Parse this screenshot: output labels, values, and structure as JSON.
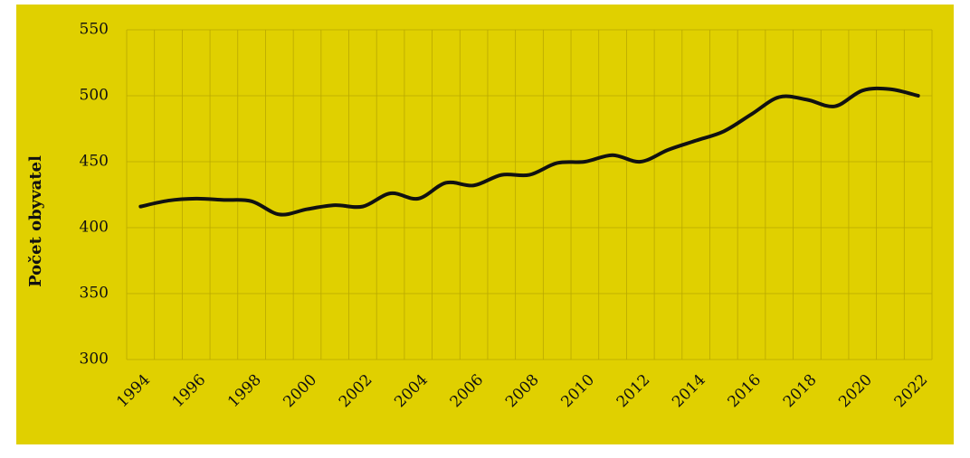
{
  "chart_data": {
    "type": "line",
    "y_label": "Počet obyvatel",
    "categories": [
      "1994",
      null,
      "1996",
      null,
      "1998",
      null,
      "2000",
      null,
      "2002",
      null,
      "2004",
      null,
      "2006",
      null,
      "2008",
      null,
      "2010",
      null,
      "2012",
      null,
      "2014",
      null,
      "2016",
      null,
      "2018",
      null,
      "2020",
      null,
      "2022"
    ],
    "series": [
      {
        "color": "#111111",
        "values": [
          416,
          420.5,
          422,
          421,
          420,
          410,
          414,
          417,
          416,
          426,
          422,
          434,
          432,
          440,
          440,
          449,
          450,
          455,
          450,
          459,
          466,
          473,
          486,
          499,
          497,
          492,
          504,
          505,
          500
        ]
      }
    ],
    "ylim": [
      300,
      550
    ],
    "yticks": [
      300,
      350,
      400,
      450,
      500,
      550
    ],
    "grid": true,
    "background": "#e0d000"
  }
}
